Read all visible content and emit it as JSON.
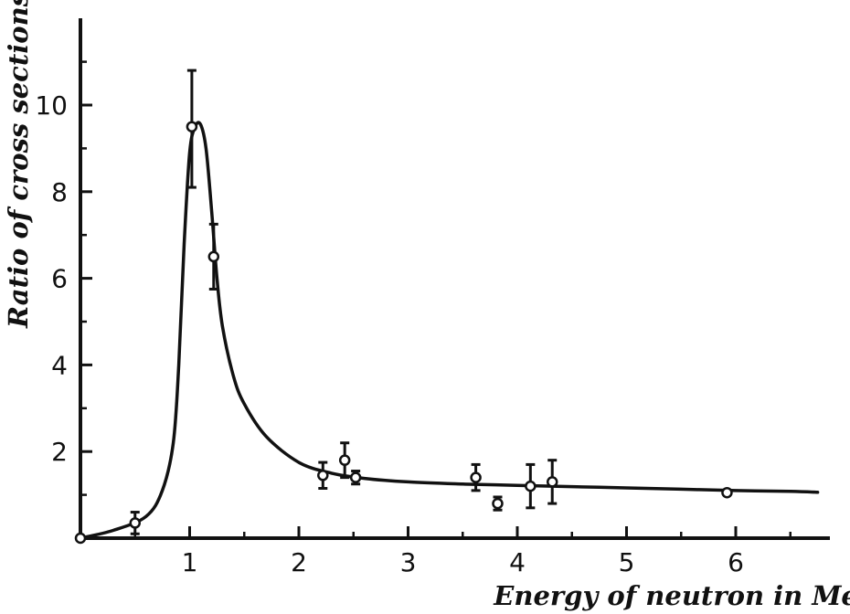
{
  "chart_data": {
    "type": "scatter",
    "title": "",
    "xlabel": "Energy of neutron in Mev",
    "ylabel": "Ratio of cross sections",
    "xlim": [
      0,
      6.8
    ],
    "ylim": [
      0,
      12.0
    ],
    "x_ticks": [
      1,
      2,
      3,
      4,
      5,
      6
    ],
    "x_tick_labels": [
      "1",
      "2",
      "3",
      "4",
      "5",
      "6"
    ],
    "y_ticks": [
      2,
      4,
      6,
      8,
      10
    ],
    "y_tick_labels": [
      "2",
      "4",
      "6",
      "8",
      "10"
    ],
    "grid": false,
    "series": [
      {
        "kind": "points",
        "marker": "open-circle",
        "x": [
          0.0,
          0.5,
          1.02,
          1.22,
          2.22,
          2.42,
          2.52,
          3.62,
          3.82,
          4.12,
          4.32,
          5.92
        ],
        "y": [
          0.0,
          0.35,
          9.5,
          6.5,
          1.45,
          1.8,
          1.4,
          1.4,
          0.8,
          1.2,
          1.3,
          1.05
        ],
        "y_err_low": [
          0.0,
          0.25,
          1.4,
          0.75,
          0.3,
          0.4,
          0.15,
          0.3,
          0.15,
          0.5,
          0.5,
          0.0
        ],
        "y_err_high": [
          0.0,
          0.25,
          1.3,
          0.75,
          0.3,
          0.4,
          0.15,
          0.3,
          0.15,
          0.5,
          0.5,
          0.0
        ]
      },
      {
        "kind": "curve",
        "x": [
          0.0,
          0.3,
          0.6,
          0.75,
          0.85,
          0.9,
          0.95,
          1.0,
          1.05,
          1.1,
          1.15,
          1.2,
          1.25,
          1.3,
          1.4,
          1.5,
          1.7,
          2.0,
          2.3,
          2.6,
          3.0,
          3.5,
          4.0,
          4.5,
          5.0,
          5.5,
          6.0,
          6.5,
          6.75
        ],
        "y": [
          0.0,
          0.18,
          0.5,
          1.1,
          2.2,
          4.0,
          6.8,
          8.9,
          9.5,
          9.55,
          9.0,
          7.6,
          6.0,
          4.9,
          3.75,
          3.1,
          2.35,
          1.75,
          1.5,
          1.38,
          1.3,
          1.25,
          1.22,
          1.19,
          1.16,
          1.13,
          1.1,
          1.08,
          1.06
        ]
      }
    ]
  }
}
